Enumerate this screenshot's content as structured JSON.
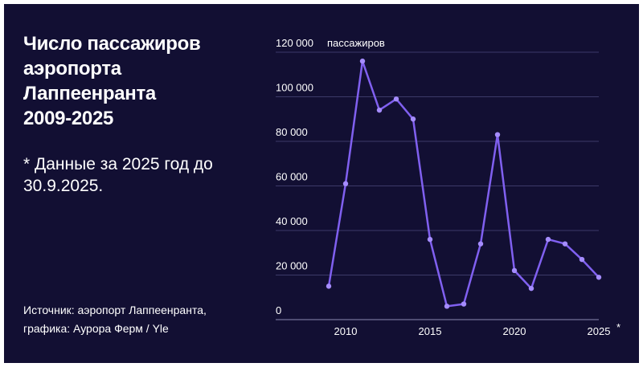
{
  "title_lines": [
    "Число пассажиров",
    "аэропорта",
    "Лаппеенранта",
    "2009-2025"
  ],
  "note_lines": [
    "* Данные за 2025 год до",
    "30.9.2025."
  ],
  "source_lines": [
    "Источник: аэропорт Лаппеенранта,",
    "графика: Аурора Ферм / Yle"
  ],
  "colors": {
    "background": "#120f33",
    "line": "#8060f0",
    "marker": "#a58cff",
    "text": "#ffffff"
  },
  "chart_data": {
    "type": "line",
    "title": "Число пассажиров аэропорта Лаппеенранта 2009-2025",
    "ylabel": "пассажиров",
    "xlabel": "",
    "x": [
      2009,
      2010,
      2011,
      2012,
      2013,
      2014,
      2015,
      2016,
      2017,
      2018,
      2019,
      2020,
      2021,
      2022,
      2023,
      2024,
      2025
    ],
    "series": [
      {
        "values": [
          15000,
          61000,
          116000,
          94000,
          99000,
          90000,
          36000,
          6000,
          7000,
          34000,
          83000,
          22000,
          14000,
          36000,
          34000,
          27000,
          19000
        ]
      }
    ],
    "ylim": [
      0,
      120000
    ],
    "y_ticks": [
      0,
      20000,
      40000,
      60000,
      80000,
      100000,
      120000
    ],
    "y_tick_labels": [
      "0",
      "20 000",
      "40 000",
      "60 000",
      "80 000",
      "100 000",
      "120 000"
    ],
    "x_ticks": [
      2010,
      2015,
      2020,
      2025
    ],
    "x_tick_labels": [
      "2010",
      "2015",
      "2020",
      "2025"
    ],
    "x_tick_suffix": "*",
    "grid": true
  }
}
